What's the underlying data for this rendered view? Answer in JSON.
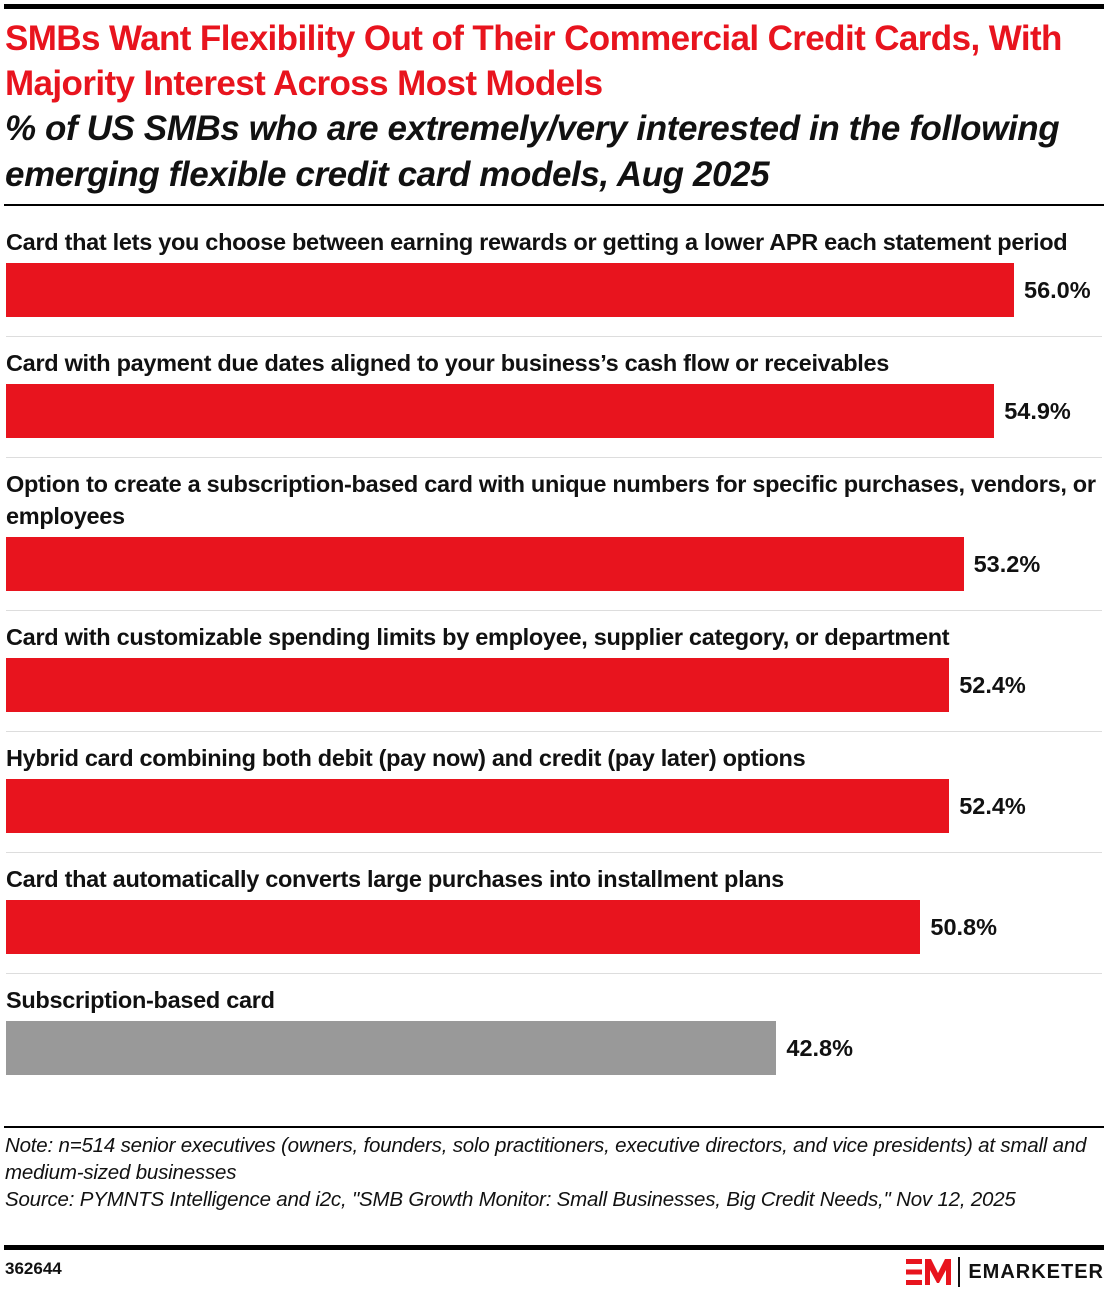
{
  "header": {
    "title": "SMBs Want Flexibility Out of Their Commercial Credit Cards, With Majority Interest Across Most Models",
    "subtitle": "% of US SMBs who are extremely/very interested in the following emerging flexible credit card models, Aug 2025"
  },
  "chart_data": {
    "type": "bar",
    "orientation": "horizontal",
    "title": "SMBs Want Flexibility Out of Their Commercial Credit Cards, With Majority Interest Across Most Models",
    "subtitle": "% of US SMBs who are extremely/very interested in the following emerging flexible credit card models, Aug 2025",
    "categories": [
      "Card that lets you choose between earning rewards or getting a lower APR each statement period",
      "Card with payment due dates aligned to your business’s cash flow or receivables",
      "Option to create a subscription-based card with unique numbers for specific purchases, vendors, or employees",
      "Card with customizable spending limits by employee, supplier category, or department",
      "Hybrid card combining both debit (pay now) and credit (pay later) options",
      "Card that automatically converts large purchases into installment plans",
      "Subscription-based card"
    ],
    "values": [
      56.0,
      54.9,
      53.2,
      52.4,
      52.4,
      50.8,
      42.8
    ],
    "value_labels": [
      "56.0%",
      "54.9%",
      "53.2%",
      "52.4%",
      "52.4%",
      "50.8%",
      "42.8%"
    ],
    "colors": [
      "#e8141e",
      "#e8141e",
      "#e8141e",
      "#e8141e",
      "#e8141e",
      "#e8141e",
      "#999999"
    ],
    "xlim": [
      0,
      56.0
    ],
    "grid": false,
    "legend": "none"
  },
  "footer": {
    "note": "Note: n=514 senior executives (owners, founders, solo practitioners, executive directors, and vice presidents) at small and medium-sized businesses",
    "source": "Source: PYMNTS Intelligence and i2c, \"SMB Growth Monitor: Small Businesses, Big Credit Needs,\" Nov 12, 2025",
    "chart_id": "362644",
    "brand": "EMARKETER",
    "brand_color": "#e8141e"
  }
}
